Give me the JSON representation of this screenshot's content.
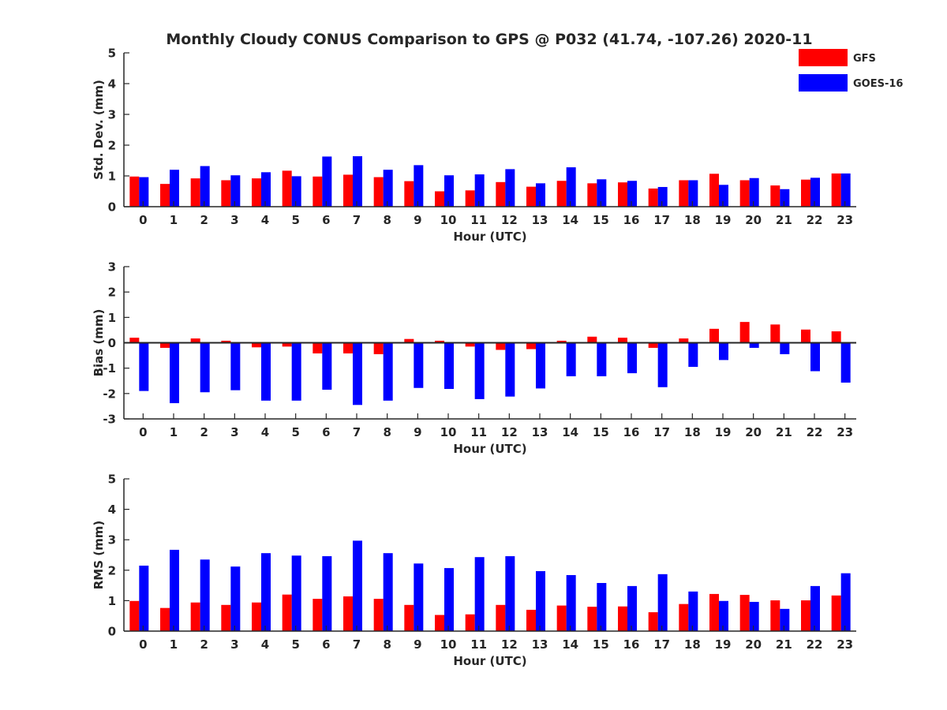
{
  "chart_data": {
    "title": "Monthly Cloudy CONUS Comparison to GPS @ P032 (41.74, -107.26) 2020-11",
    "legend": {
      "placement": "top-right",
      "entries": [
        {
          "name": "GFS",
          "color": "#ff0000"
        },
        {
          "name": "GOES-16",
          "color": "#0000ff"
        }
      ]
    },
    "panels": [
      {
        "type": "bar",
        "xlabel": "Hour (UTC)",
        "ylabel": "Std. Dev. (mm)",
        "ylim": [
          0,
          5
        ],
        "yticks": [
          0,
          1,
          2,
          3,
          4,
          5
        ],
        "categories": [
          "0",
          "1",
          "2",
          "3",
          "4",
          "5",
          "6",
          "7",
          "8",
          "9",
          "10",
          "11",
          "12",
          "13",
          "14",
          "15",
          "16",
          "17",
          "18",
          "19",
          "20",
          "21",
          "22",
          "23"
        ],
        "series": [
          {
            "name": "GFS",
            "values": [
              0.98,
              0.74,
              0.92,
              0.86,
              0.92,
              1.17,
              0.98,
              1.04,
              0.96,
              0.83,
              0.5,
              0.53,
              0.8,
              0.65,
              0.84,
              0.76,
              0.79,
              0.59,
              0.86,
              1.07,
              0.86,
              0.69,
              0.88,
              1.08
            ]
          },
          {
            "name": "GOES-16",
            "values": [
              0.96,
              1.2,
              1.32,
              1.02,
              1.12,
              0.99,
              1.63,
              1.64,
              1.2,
              1.35,
              1.02,
              1.05,
              1.22,
              0.76,
              1.28,
              0.89,
              0.84,
              0.64,
              0.86,
              0.71,
              0.93,
              0.57,
              0.94,
              1.08
            ]
          }
        ]
      },
      {
        "type": "bar",
        "xlabel": "Hour (UTC)",
        "ylabel": "Bias (mm)",
        "ylim": [
          -3,
          3
        ],
        "yticks": [
          -3,
          -2,
          -1,
          0,
          1,
          2,
          3
        ],
        "zero_line": true,
        "categories": [
          "0",
          "1",
          "2",
          "3",
          "4",
          "5",
          "6",
          "7",
          "8",
          "9",
          "10",
          "11",
          "12",
          "13",
          "14",
          "15",
          "16",
          "17",
          "18",
          "19",
          "20",
          "21",
          "22",
          "23"
        ],
        "series": [
          {
            "name": "GFS",
            "values": [
              0.2,
              -0.2,
              0.17,
              0.08,
              -0.18,
              -0.15,
              -0.42,
              -0.42,
              -0.45,
              0.15,
              0.08,
              -0.15,
              -0.28,
              -0.25,
              0.08,
              0.24,
              0.2,
              -0.2,
              0.17,
              0.55,
              0.82,
              0.72,
              0.52,
              0.45
            ]
          },
          {
            "name": "GOES-16",
            "values": [
              -1.9,
              -2.38,
              -1.95,
              -1.87,
              -2.28,
              -2.28,
              -1.85,
              -2.45,
              -2.28,
              -1.78,
              -1.82,
              -2.22,
              -2.12,
              -1.8,
              -1.32,
              -1.32,
              -1.2,
              -1.75,
              -0.95,
              -0.68,
              -0.2,
              -0.45,
              -1.12,
              -1.57
            ]
          }
        ]
      },
      {
        "type": "bar",
        "xlabel": "Hour (UTC)",
        "ylabel": "RMS (mm)",
        "ylim": [
          0,
          5
        ],
        "yticks": [
          0,
          1,
          2,
          3,
          4,
          5
        ],
        "categories": [
          "0",
          "1",
          "2",
          "3",
          "4",
          "5",
          "6",
          "7",
          "8",
          "9",
          "10",
          "11",
          "12",
          "13",
          "14",
          "15",
          "16",
          "17",
          "18",
          "19",
          "20",
          "21",
          "22",
          "23"
        ],
        "series": [
          {
            "name": "GFS",
            "values": [
              0.99,
              0.76,
              0.94,
              0.86,
              0.94,
              1.2,
              1.06,
              1.14,
              1.06,
              0.86,
              0.53,
              0.55,
              0.86,
              0.7,
              0.84,
              0.8,
              0.81,
              0.62,
              0.89,
              1.22,
              1.19,
              1.01,
              1.01,
              1.17
            ]
          },
          {
            "name": "GOES-16",
            "values": [
              2.15,
              2.67,
              2.35,
              2.12,
              2.56,
              2.48,
              2.46,
              2.97,
              2.56,
              2.22,
              2.07,
              2.43,
              2.46,
              1.97,
              1.84,
              1.58,
              1.48,
              1.87,
              1.3,
              0.99,
              0.96,
              0.73,
              1.48,
              1.9
            ]
          }
        ]
      }
    ]
  }
}
